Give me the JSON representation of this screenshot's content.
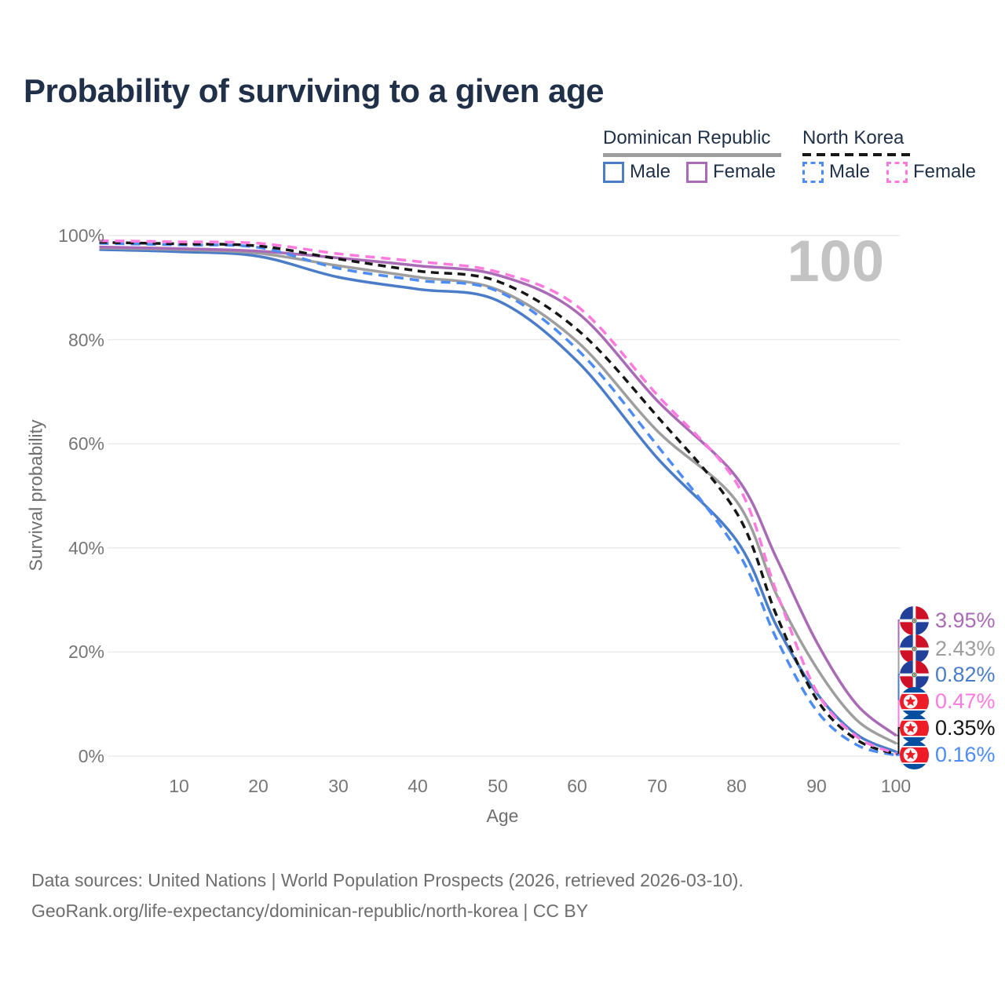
{
  "title": "Probability of surviving to a given age",
  "watermark": "100",
  "legend": {
    "groups": [
      {
        "label": "Dominican Republic",
        "style": "solid",
        "color": "#9e9e9e"
      },
      {
        "label": "North Korea",
        "style": "dashed",
        "color": "#161616"
      }
    ],
    "items": [
      {
        "label": "Male",
        "group": "Dominican Republic",
        "color": "#4a7cc7",
        "style": "solid"
      },
      {
        "label": "Female",
        "group": "Dominican Republic",
        "color": "#a96bb5",
        "style": "solid"
      },
      {
        "label": "Male",
        "group": "North Korea",
        "color": "#4d8bf5",
        "style": "dashed"
      },
      {
        "label": "Female",
        "group": "North Korea",
        "color": "#ff7ade",
        "style": "dashed"
      }
    ]
  },
  "chart_data": {
    "type": "line",
    "title": "Probability of surviving to a given age",
    "xlabel": "Age",
    "ylabel": "Survival probability",
    "xlim": [
      0,
      100
    ],
    "ylim": [
      0,
      100
    ],
    "x_ticks": [
      10,
      20,
      30,
      40,
      50,
      60,
      70,
      80,
      90,
      100
    ],
    "y_ticks": [
      0,
      20,
      40,
      60,
      80,
      100
    ],
    "y_tick_suffix": "%",
    "grid": "horizontal-only",
    "legend_position": "top-right",
    "age_counter_watermark": "100",
    "ages": [
      0,
      10,
      20,
      30,
      40,
      50,
      60,
      70,
      80,
      85,
      90,
      95,
      100
    ],
    "series": [
      {
        "name": "Dominican Republic Female",
        "country": "Dominican Republic",
        "sex": "Female",
        "color": "#a96bb5",
        "dash": "solid",
        "flag": "do",
        "end_label": "3.95%",
        "values": [
          97.8,
          97.5,
          97.0,
          95.7,
          94.2,
          92.4,
          85.2,
          68.3,
          53.5,
          38.0,
          22.0,
          10.0,
          3.95
        ]
      },
      {
        "name": "Dominican Republic Both sexes",
        "country": "Dominican Republic",
        "sex": "Both",
        "color": "#9e9e9e",
        "dash": "solid",
        "flag": "do",
        "end_label": "2.43%",
        "values": [
          97.6,
          97.3,
          96.6,
          94.2,
          92.0,
          89.6,
          79.6,
          62.5,
          48.9,
          31.0,
          17.0,
          7.0,
          2.43
        ]
      },
      {
        "name": "Dominican Republic Male",
        "country": "Dominican Republic",
        "sex": "Male",
        "color": "#4a7cc7",
        "dash": "solid",
        "flag": "do",
        "end_label": "0.82%",
        "values": [
          97.3,
          96.9,
          96.0,
          92.0,
          89.7,
          87.5,
          75.8,
          57.3,
          41.4,
          25.0,
          12.2,
          4.2,
          0.82
        ]
      },
      {
        "name": "North Korea Female",
        "country": "North Korea",
        "sex": "Female",
        "color": "#ff7ade",
        "dash": "dashed",
        "flag": "kp",
        "end_label": "0.47%",
        "values": [
          99.0,
          98.8,
          98.5,
          96.5,
          95.0,
          93.0,
          86.4,
          69.4,
          52.4,
          31.5,
          12.5,
          3.8,
          0.47
        ]
      },
      {
        "name": "North Korea Both sexes",
        "country": "North Korea",
        "sex": "Both",
        "color": "#161616",
        "dash": "dashed",
        "flag": "kp",
        "end_label": "0.35%",
        "values": [
          98.7,
          98.4,
          98.0,
          95.5,
          93.2,
          91.2,
          81.9,
          65.3,
          46.7,
          27.0,
          11.0,
          3.2,
          0.35
        ]
      },
      {
        "name": "North Korea Male",
        "country": "North Korea",
        "sex": "Male",
        "color": "#4d8bf5",
        "dash": "dashed",
        "flag": "kp",
        "end_label": "0.16%",
        "values": [
          98.5,
          98.2,
          97.7,
          93.7,
          91.4,
          89.3,
          78.1,
          59.7,
          39.6,
          22.5,
          8.8,
          2.2,
          0.16
        ]
      }
    ]
  },
  "flags": {
    "do": {
      "blue": "#21409a",
      "red": "#ce1126",
      "white": "#f5f6f8",
      "emblem_green": "#2f6b2f",
      "emblem_red": "#8f2b35"
    },
    "kp": {
      "blue": "#024fa2",
      "red": "#ed1c27",
      "white": "#f5f6f8",
      "star": "#ed1c27"
    }
  },
  "colors": {
    "title_text": "#1f3048",
    "tick_text": "#767676",
    "gridline": "#ebebeb",
    "watermark": "#c3c3c3",
    "source_text": "#6e6e6e"
  },
  "source": {
    "line1": "Data sources: United Nations | World Population Prospects (2026, retrieved 2026-03-10).",
    "line2": "GeoRank.org/life-expectancy/dominican-republic/north-korea | CC BY"
  }
}
